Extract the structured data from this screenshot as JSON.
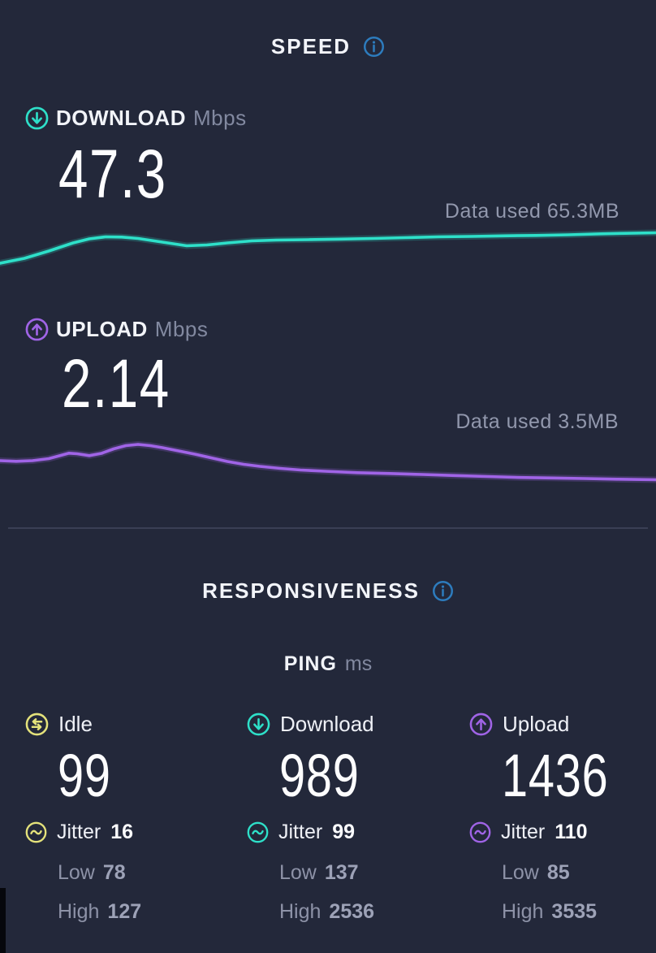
{
  "theme": {
    "background": "#23283a",
    "teal": "#2ee0c9",
    "purple": "#a064e6",
    "yellow": "#e4e27b",
    "info_blue": "#2d7cbe",
    "gray_text": "#9298ad",
    "white_text": "#fdfdfe"
  },
  "speed": {
    "title": "SPEED",
    "download": {
      "label": "DOWNLOAD",
      "unit": "Mbps",
      "value": "47.3",
      "data_used": "Data used 65.3MB"
    },
    "upload": {
      "label": "UPLOAD",
      "unit": "Mbps",
      "value": "2.14",
      "data_used": "Data used 3.5MB"
    }
  },
  "responsiveness": {
    "title": "RESPONSIVENESS",
    "ping_label": "PING",
    "ping_unit": "ms",
    "jitter_label": "Jitter",
    "low_label": "Low",
    "high_label": "High",
    "columns": [
      {
        "label": "Idle",
        "value": "99",
        "jitter": "16",
        "low": "78",
        "high": "127"
      },
      {
        "label": "Download",
        "value": "989",
        "jitter": "99",
        "low": "137",
        "high": "2536"
      },
      {
        "label": "Upload",
        "value": "1436",
        "jitter": "110",
        "low": "85",
        "high": "3535"
      }
    ]
  },
  "chart_data": [
    {
      "type": "line",
      "name": "download-speed-sparkline",
      "color": "#2ee0c9",
      "x_axis": "time (unlabeled)",
      "y_axis": "download Mbps (unlabeled sparkline, rises toward 47.3)",
      "points": [
        [
          0,
          52
        ],
        [
          30,
          46
        ],
        [
          60,
          37
        ],
        [
          90,
          27
        ],
        [
          110,
          22
        ],
        [
          130,
          19.5
        ],
        [
          150,
          19.8
        ],
        [
          170,
          21.5
        ],
        [
          200,
          26
        ],
        [
          230,
          30.5
        ],
        [
          255,
          29.5
        ],
        [
          280,
          27
        ],
        [
          310,
          24.5
        ],
        [
          340,
          23.5
        ],
        [
          380,
          23
        ],
        [
          420,
          22.3
        ],
        [
          460,
          21.5
        ],
        [
          500,
          20.5
        ],
        [
          540,
          19.5
        ],
        [
          580,
          19
        ],
        [
          620,
          18.3
        ],
        [
          660,
          17.8
        ],
        [
          700,
          17
        ],
        [
          740,
          15.8
        ],
        [
          770,
          15.2
        ],
        [
          808,
          14.5
        ]
      ]
    },
    {
      "type": "line",
      "name": "upload-speed-sparkline",
      "color": "#a064e6",
      "x_axis": "time (unlabeled)",
      "y_axis": "upload Mbps (unlabeled sparkline, peaks early then declines)",
      "points": [
        [
          0,
          29
        ],
        [
          20,
          29.8
        ],
        [
          40,
          29
        ],
        [
          60,
          26.5
        ],
        [
          75,
          22.5
        ],
        [
          85,
          19.8
        ],
        [
          95,
          20.5
        ],
        [
          110,
          22.8
        ],
        [
          125,
          20
        ],
        [
          140,
          14.5
        ],
        [
          155,
          10.5
        ],
        [
          170,
          9
        ],
        [
          185,
          10.5
        ],
        [
          200,
          13
        ],
        [
          220,
          17
        ],
        [
          240,
          21
        ],
        [
          260,
          25.5
        ],
        [
          280,
          30
        ],
        [
          300,
          33.5
        ],
        [
          320,
          36
        ],
        [
          345,
          38.5
        ],
        [
          370,
          40.5
        ],
        [
          400,
          42
        ],
        [
          440,
          43.8
        ],
        [
          480,
          44.8
        ],
        [
          520,
          46
        ],
        [
          560,
          47.3
        ],
        [
          600,
          48.5
        ],
        [
          640,
          49.7
        ],
        [
          680,
          50.3
        ],
        [
          720,
          51
        ],
        [
          760,
          51.8
        ],
        [
          808,
          52.5
        ]
      ]
    }
  ]
}
